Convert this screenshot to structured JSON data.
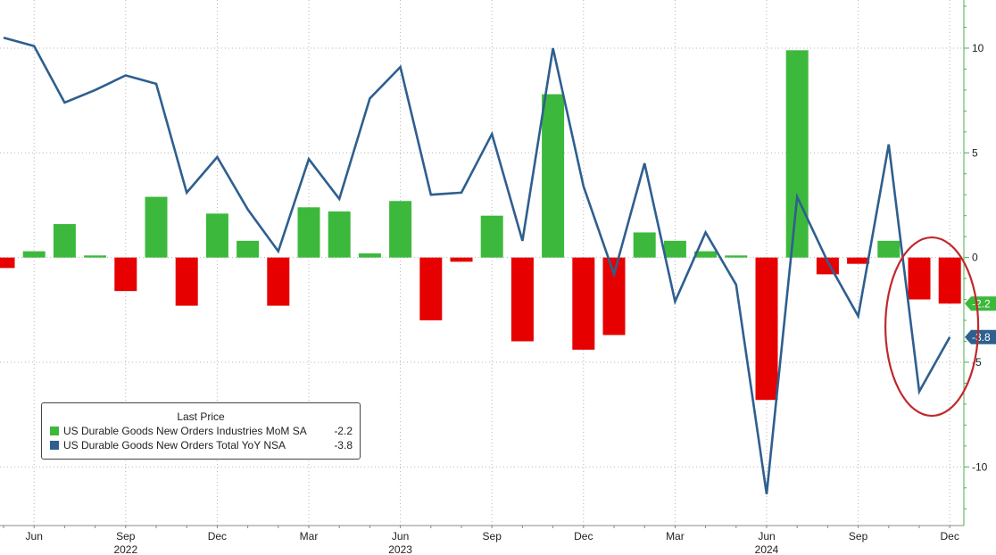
{
  "chart_data": {
    "type": "bar",
    "x": [
      "2022-05",
      "2022-06",
      "2022-07",
      "2022-08",
      "2022-09",
      "2022-10",
      "2022-11",
      "2022-12",
      "2023-01",
      "2023-02",
      "2023-03",
      "2023-04",
      "2023-05",
      "2023-06",
      "2023-07",
      "2023-08",
      "2023-09",
      "2023-10",
      "2023-11",
      "2023-12",
      "2024-01",
      "2024-02",
      "2024-03",
      "2024-04",
      "2024-05",
      "2024-06",
      "2024-07",
      "2024-08",
      "2024-09",
      "2024-10",
      "2024-11",
      "2024-12"
    ],
    "series": [
      {
        "name": "US Durable Goods New Orders Industries MoM SA",
        "type": "bar",
        "color": "#3cb93c",
        "negative_color": "#e60000",
        "last_value": "-2.2",
        "values": [
          -0.5,
          0.3,
          1.6,
          0.1,
          -1.6,
          2.9,
          -2.3,
          2.1,
          0.8,
          -2.3,
          2.4,
          2.2,
          0.2,
          2.7,
          -3.0,
          -0.2,
          2.0,
          -4.0,
          7.8,
          -4.4,
          -3.7,
          1.2,
          0.8,
          0.3,
          0.1,
          -6.8,
          9.9,
          -0.8,
          -0.3,
          0.8,
          -2.0,
          -2.2
        ]
      },
      {
        "name": "US Durable Goods New Orders Total YoY NSA",
        "type": "line",
        "color": "#2e5f8f",
        "last_value": "-3.8",
        "values": [
          10.5,
          10.1,
          7.4,
          8.0,
          8.7,
          8.3,
          3.1,
          4.8,
          2.3,
          0.3,
          4.7,
          2.8,
          7.6,
          9.1,
          3.0,
          3.1,
          5.9,
          0.8,
          10.0,
          3.4,
          -0.8,
          4.5,
          -2.1,
          1.2,
          -1.3,
          -11.3,
          2.9,
          -0.2,
          -2.8,
          5.4,
          -6.4,
          -3.8
        ]
      }
    ],
    "x_tick_labels": [
      {
        "label": "Jun",
        "at": "2022-06"
      },
      {
        "label": "Sep",
        "at": "2022-09"
      },
      {
        "label": "Dec",
        "at": "2022-12"
      },
      {
        "label": "Mar",
        "at": "2023-03"
      },
      {
        "label": "Jun",
        "at": "2023-06"
      },
      {
        "label": "Sep",
        "at": "2023-09"
      },
      {
        "label": "Dec",
        "at": "2023-12"
      },
      {
        "label": "Mar",
        "at": "2024-03"
      },
      {
        "label": "Jun",
        "at": "2024-06"
      },
      {
        "label": "Sep",
        "at": "2024-09"
      },
      {
        "label": "Dec",
        "at": "2024-12"
      }
    ],
    "year_labels": [
      {
        "label": "2022",
        "at": "2022-09"
      },
      {
        "label": "2023",
        "at": "2023-06"
      },
      {
        "label": "2024",
        "at": "2024-06"
      }
    ],
    "y_ticks": [
      -10,
      -5,
      0,
      5,
      10
    ],
    "ylim": [
      -12.8,
      12.3
    ],
    "y_axis_side": "right",
    "grid": true,
    "legend": {
      "title": "Last Price",
      "placement": "bottom-left"
    },
    "annotations": [
      {
        "type": "ellipse",
        "color": "#c0282b",
        "covers": [
          "2024-11",
          "2024-12"
        ]
      }
    ],
    "title": "",
    "xlabel": "",
    "ylabel": ""
  }
}
